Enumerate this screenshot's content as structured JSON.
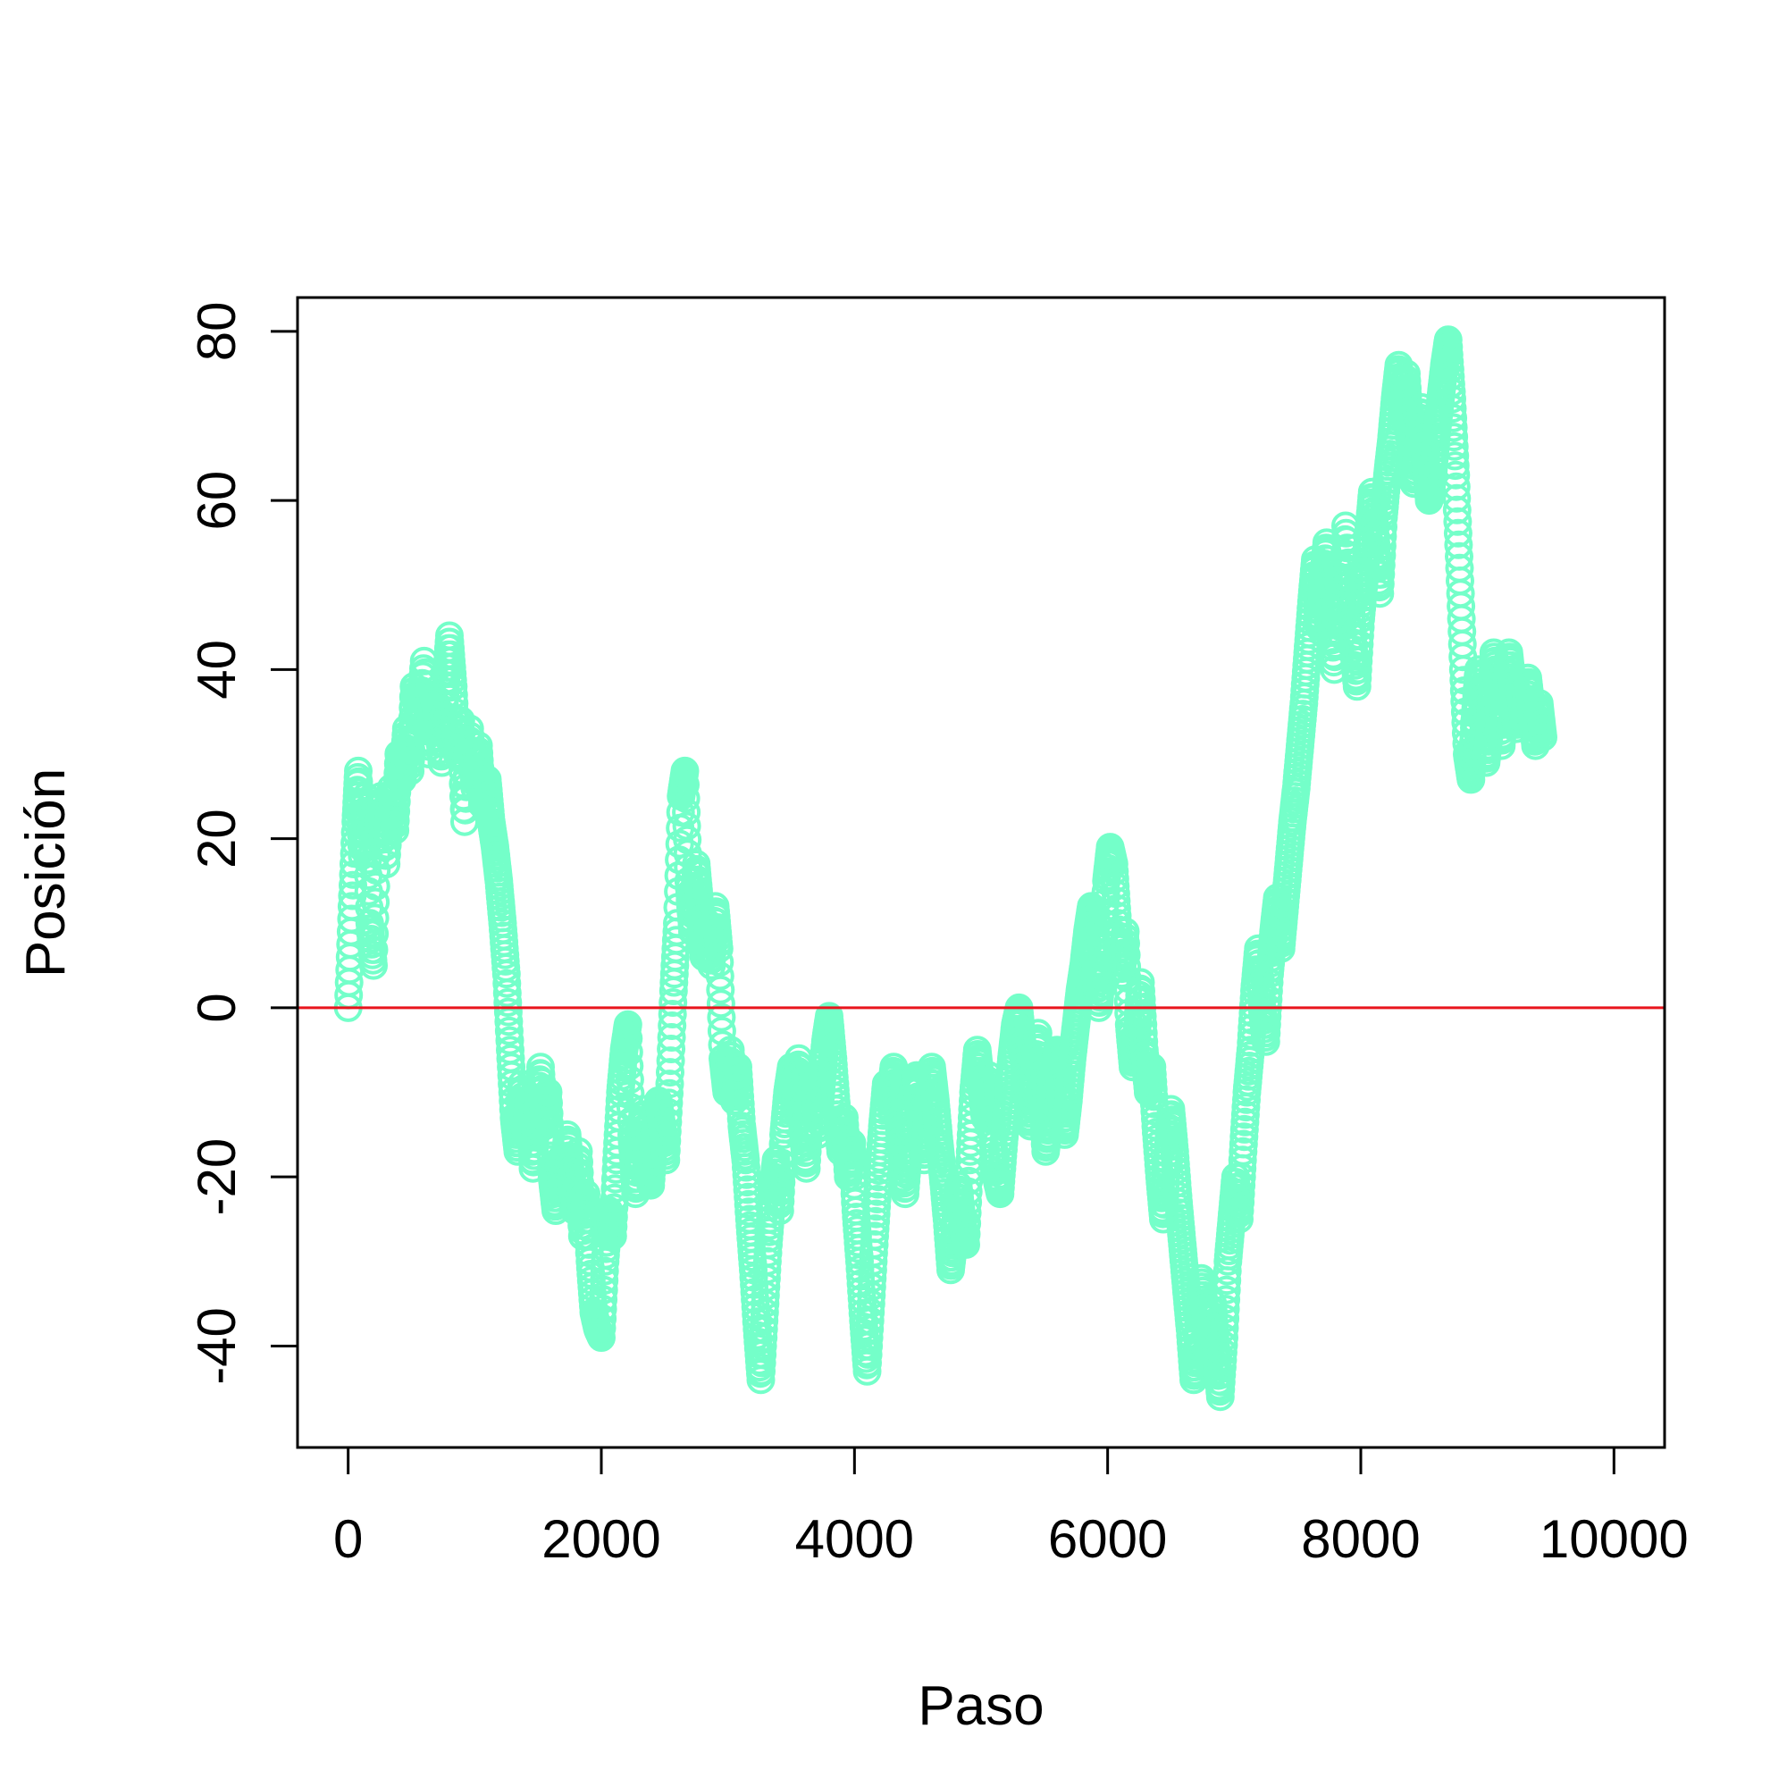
{
  "chart_data": {
    "type": "scatter",
    "title": "",
    "xlabel": "Paso",
    "ylabel": "Posición",
    "xlim": [
      -400,
      10400
    ],
    "ylim": [
      -52,
      84
    ],
    "x_ticks": [
      0,
      2000,
      4000,
      6000,
      8000,
      10000
    ],
    "y_ticks": [
      -40,
      -20,
      0,
      20,
      40,
      60,
      80
    ],
    "x_tick_labels": [
      "0",
      "2000",
      "4000",
      "6000",
      "8000",
      "10000"
    ],
    "y_tick_labels": [
      "-40",
      "-20",
      "0",
      "20",
      "40",
      "60",
      "80"
    ],
    "grid": false,
    "series": [
      {
        "marker": "open-circle",
        "color": "#74FFC9",
        "points": [
          [
            0,
            0
          ],
          [
            30,
            12
          ],
          [
            60,
            22
          ],
          [
            80,
            28
          ],
          [
            110,
            18
          ],
          [
            140,
            25
          ],
          [
            170,
            10
          ],
          [
            200,
            5
          ],
          [
            230,
            20
          ],
          [
            260,
            25
          ],
          [
            300,
            17
          ],
          [
            340,
            26
          ],
          [
            370,
            21
          ],
          [
            400,
            30
          ],
          [
            430,
            27
          ],
          [
            460,
            33
          ],
          [
            490,
            28
          ],
          [
            520,
            38
          ],
          [
            560,
            34
          ],
          [
            600,
            41
          ],
          [
            640,
            30
          ],
          [
            670,
            37
          ],
          [
            700,
            35
          ],
          [
            740,
            29
          ],
          [
            770,
            38
          ],
          [
            800,
            44
          ],
          [
            830,
            38
          ],
          [
            860,
            30
          ],
          [
            890,
            34
          ],
          [
            920,
            22
          ],
          [
            960,
            33
          ],
          [
            1000,
            26
          ],
          [
            1030,
            31
          ],
          [
            1060,
            24
          ],
          [
            1100,
            27
          ],
          [
            1130,
            22
          ],
          [
            1160,
            19
          ],
          [
            1190,
            15
          ],
          [
            1220,
            10
          ],
          [
            1250,
            4
          ],
          [
            1280,
            -5
          ],
          [
            1310,
            -13
          ],
          [
            1340,
            -17
          ],
          [
            1370,
            -9
          ],
          [
            1400,
            -15
          ],
          [
            1430,
            -11
          ],
          [
            1460,
            -19
          ],
          [
            1490,
            -13
          ],
          [
            1520,
            -7
          ],
          [
            1550,
            -14
          ],
          [
            1580,
            -10
          ],
          [
            1610,
            -20
          ],
          [
            1640,
            -24
          ],
          [
            1670,
            -18
          ],
          [
            1700,
            -22
          ],
          [
            1730,
            -15
          ],
          [
            1760,
            -20
          ],
          [
            1790,
            -24
          ],
          [
            1820,
            -17
          ],
          [
            1850,
            -27
          ],
          [
            1880,
            -22
          ],
          [
            1910,
            -30
          ],
          [
            1940,
            -36
          ],
          [
            1970,
            -38
          ],
          [
            2000,
            -39
          ],
          [
            2030,
            -30
          ],
          [
            2060,
            -24
          ],
          [
            2090,
            -27
          ],
          [
            2120,
            -18
          ],
          [
            2150,
            -10
          ],
          [
            2180,
            -5
          ],
          [
            2210,
            -2
          ],
          [
            2240,
            -15
          ],
          [
            2270,
            -22
          ],
          [
            2300,
            -17
          ],
          [
            2330,
            -12
          ],
          [
            2360,
            -18
          ],
          [
            2390,
            -21
          ],
          [
            2420,
            -15
          ],
          [
            2450,
            -11
          ],
          [
            2480,
            -14
          ],
          [
            2510,
            -18
          ],
          [
            2540,
            -9
          ],
          [
            2570,
            2
          ],
          [
            2600,
            10
          ],
          [
            2630,
            25
          ],
          [
            2660,
            28
          ],
          [
            2690,
            15
          ],
          [
            2720,
            9
          ],
          [
            2750,
            17
          ],
          [
            2780,
            12
          ],
          [
            2810,
            6
          ],
          [
            2840,
            10
          ],
          [
            2870,
            5
          ],
          [
            2900,
            12
          ],
          [
            2930,
            7
          ],
          [
            2960,
            -6
          ],
          [
            2990,
            -10
          ],
          [
            3020,
            -5
          ],
          [
            3050,
            -11
          ],
          [
            3080,
            -7
          ],
          [
            3110,
            -14
          ],
          [
            3140,
            -18
          ],
          [
            3170,
            -25
          ],
          [
            3200,
            -31
          ],
          [
            3230,
            -38
          ],
          [
            3260,
            -44
          ],
          [
            3290,
            -36
          ],
          [
            3320,
            -28
          ],
          [
            3350,
            -22
          ],
          [
            3380,
            -18
          ],
          [
            3410,
            -24
          ],
          [
            3440,
            -15
          ],
          [
            3470,
            -10
          ],
          [
            3500,
            -7
          ],
          [
            3530,
            -12
          ],
          [
            3560,
            -6
          ],
          [
            3590,
            -14
          ],
          [
            3620,
            -19
          ],
          [
            3650,
            -11
          ],
          [
            3680,
            -8
          ],
          [
            3710,
            -15
          ],
          [
            3740,
            -9
          ],
          [
            3770,
            -4
          ],
          [
            3800,
            -1
          ],
          [
            3830,
            -6
          ],
          [
            3860,
            -12
          ],
          [
            3890,
            -17
          ],
          [
            3920,
            -13
          ],
          [
            3950,
            -20
          ],
          [
            3980,
            -16
          ],
          [
            4010,
            -24
          ],
          [
            4040,
            -30
          ],
          [
            4070,
            -37
          ],
          [
            4100,
            -43
          ],
          [
            4130,
            -35
          ],
          [
            4160,
            -27
          ],
          [
            4190,
            -20
          ],
          [
            4220,
            -14
          ],
          [
            4250,
            -9
          ],
          [
            4280,
            -11
          ],
          [
            4310,
            -7
          ],
          [
            4340,
            -12
          ],
          [
            4370,
            -17
          ],
          [
            4400,
            -22
          ],
          [
            4430,
            -16
          ],
          [
            4460,
            -10
          ],
          [
            4490,
            -8
          ],
          [
            4520,
            -13
          ],
          [
            4550,
            -18
          ],
          [
            4580,
            -12
          ],
          [
            4610,
            -7
          ],
          [
            4640,
            -11
          ],
          [
            4670,
            -16
          ],
          [
            4700,
            -20
          ],
          [
            4730,
            -25
          ],
          [
            4760,
            -31
          ],
          [
            4790,
            -27
          ],
          [
            4820,
            -21
          ],
          [
            4850,
            -25
          ],
          [
            4880,
            -28
          ],
          [
            4910,
            -18
          ],
          [
            4940,
            -10
          ],
          [
            4970,
            -5
          ],
          [
            5000,
            -9
          ],
          [
            5030,
            -13
          ],
          [
            5060,
            -8
          ],
          [
            5090,
            -15
          ],
          [
            5120,
            -20
          ],
          [
            5150,
            -22
          ],
          [
            5180,
            -16
          ],
          [
            5210,
            -11
          ],
          [
            5240,
            -6
          ],
          [
            5270,
            -2
          ],
          [
            5300,
            0
          ],
          [
            5330,
            -5
          ],
          [
            5360,
            -10
          ],
          [
            5390,
            -14
          ],
          [
            5420,
            -8
          ],
          [
            5450,
            -3
          ],
          [
            5480,
            -10
          ],
          [
            5510,
            -17
          ],
          [
            5540,
            -13
          ],
          [
            5570,
            -8
          ],
          [
            5600,
            -5
          ],
          [
            5630,
            -10
          ],
          [
            5660,
            -15
          ],
          [
            5690,
            -11
          ],
          [
            5720,
            -6
          ],
          [
            5750,
            -2
          ],
          [
            5780,
            2
          ],
          [
            5810,
            5
          ],
          [
            5840,
            9
          ],
          [
            5870,
            12
          ],
          [
            5900,
            6
          ],
          [
            5930,
            0
          ],
          [
            5960,
            5
          ],
          [
            5990,
            15
          ],
          [
            6020,
            19
          ],
          [
            6050,
            17
          ],
          [
            6080,
            10
          ],
          [
            6110,
            4
          ],
          [
            6140,
            9
          ],
          [
            6170,
            -2
          ],
          [
            6200,
            -7
          ],
          [
            6230,
            -3
          ],
          [
            6260,
            3
          ],
          [
            6290,
            -5
          ],
          [
            6320,
            -10
          ],
          [
            6350,
            -7
          ],
          [
            6380,
            -14
          ],
          [
            6410,
            -20
          ],
          [
            6440,
            -25
          ],
          [
            6470,
            -18
          ],
          [
            6500,
            -12
          ],
          [
            6530,
            -17
          ],
          [
            6560,
            -23
          ],
          [
            6590,
            -28
          ],
          [
            6620,
            -33
          ],
          [
            6650,
            -38
          ],
          [
            6680,
            -44
          ],
          [
            6710,
            -40
          ],
          [
            6740,
            -32
          ],
          [
            6770,
            -36
          ],
          [
            6800,
            -42
          ],
          [
            6830,
            -35
          ],
          [
            6860,
            -41
          ],
          [
            6890,
            -46
          ],
          [
            6920,
            -39
          ],
          [
            6950,
            -30
          ],
          [
            6980,
            -25
          ],
          [
            7010,
            -20
          ],
          [
            7040,
            -25
          ],
          [
            7070,
            -17
          ],
          [
            7100,
            -10
          ],
          [
            7130,
            -5
          ],
          [
            7160,
            2
          ],
          [
            7190,
            7
          ],
          [
            7220,
            0
          ],
          [
            7250,
            -4
          ],
          [
            7280,
            4
          ],
          [
            7310,
            9
          ],
          [
            7340,
            13
          ],
          [
            7370,
            7
          ],
          [
            7400,
            12
          ],
          [
            7430,
            17
          ],
          [
            7460,
            22
          ],
          [
            7490,
            26
          ],
          [
            7520,
            31
          ],
          [
            7550,
            36
          ],
          [
            7580,
            42
          ],
          [
            7610,
            48
          ],
          [
            7640,
            53
          ],
          [
            7670,
            45
          ],
          [
            7700,
            50
          ],
          [
            7730,
            55
          ],
          [
            7760,
            47
          ],
          [
            7790,
            40
          ],
          [
            7820,
            52
          ],
          [
            7850,
            44
          ],
          [
            7880,
            57
          ],
          [
            7910,
            50
          ],
          [
            7940,
            43
          ],
          [
            7970,
            38
          ],
          [
            8000,
            46
          ],
          [
            8030,
            51
          ],
          [
            8060,
            56
          ],
          [
            8090,
            61
          ],
          [
            8120,
            55
          ],
          [
            8150,
            49
          ],
          [
            8180,
            58
          ],
          [
            8210,
            63
          ],
          [
            8240,
            67
          ],
          [
            8270,
            72
          ],
          [
            8300,
            76
          ],
          [
            8330,
            70
          ],
          [
            8360,
            75
          ],
          [
            8390,
            68
          ],
          [
            8420,
            62
          ],
          [
            8450,
            66
          ],
          [
            8480,
            71
          ],
          [
            8510,
            65
          ],
          [
            8540,
            60
          ],
          [
            8570,
            63
          ],
          [
            8600,
            68
          ],
          [
            8630,
            72
          ],
          [
            8660,
            76
          ],
          [
            8690,
            79
          ],
          [
            8720,
            72
          ],
          [
            8750,
            63
          ],
          [
            8780,
            52
          ],
          [
            8810,
            40
          ],
          [
            8840,
            30
          ],
          [
            8870,
            27
          ],
          [
            8900,
            34
          ],
          [
            8930,
            40
          ],
          [
            8960,
            36
          ],
          [
            8990,
            29
          ],
          [
            9020,
            33
          ],
          [
            9050,
            42
          ],
          [
            9080,
            38
          ],
          [
            9110,
            31
          ],
          [
            9140,
            36
          ],
          [
            9170,
            42
          ],
          [
            9200,
            38
          ],
          [
            9230,
            33
          ],
          [
            9260,
            37
          ],
          [
            9290,
            34
          ],
          [
            9320,
            39
          ],
          [
            9350,
            35
          ],
          [
            9380,
            31
          ],
          [
            9410,
            36
          ],
          [
            9440,
            32
          ]
        ]
      },
      {
        "type": "hline",
        "y": 0,
        "color": "#E8141C"
      }
    ]
  }
}
